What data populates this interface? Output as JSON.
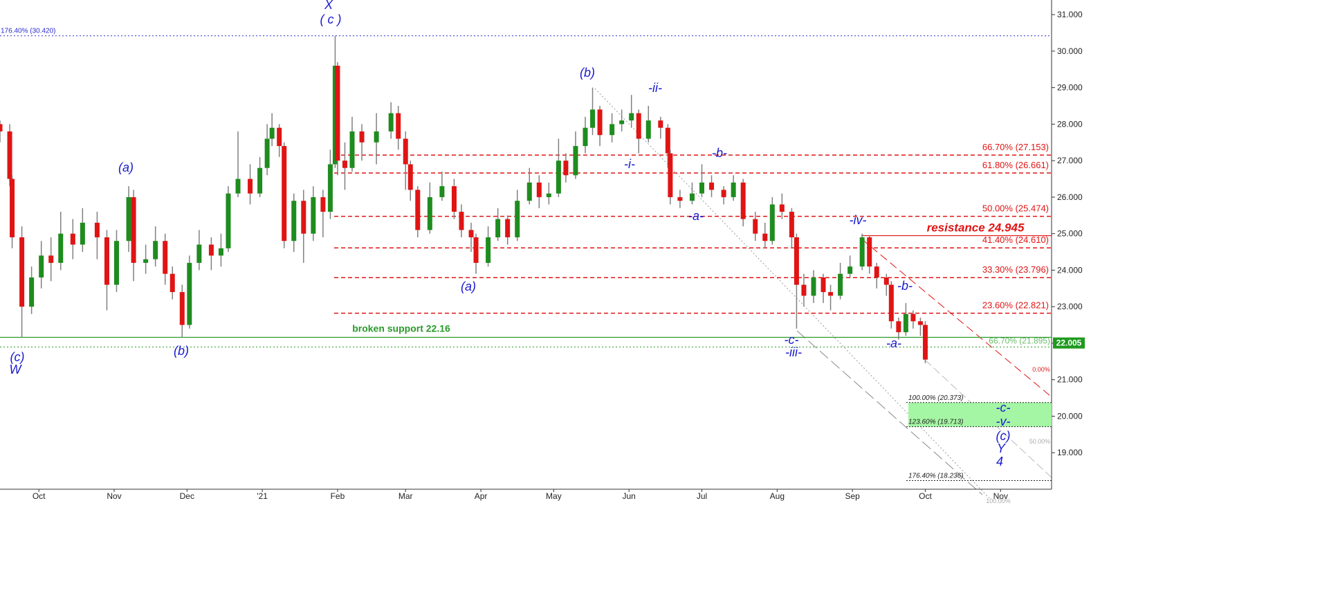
{
  "chart_data": {
    "type": "candlestick",
    "up_color": "#1e8c1e",
    "down_color": "#e01414",
    "wick_color": "#808080",
    "xlim": [
      14,
      447
    ],
    "ylim": [
      18,
      31.4
    ],
    "xticks": [
      {
        "value": 30,
        "label": "Oct"
      },
      {
        "value": 61,
        "label": "Nov"
      },
      {
        "value": 91,
        "label": "Dec"
      },
      {
        "value": 122,
        "label": "'21"
      },
      {
        "value": 153,
        "label": "Feb"
      },
      {
        "value": 181,
        "label": "Mar"
      },
      {
        "value": 212,
        "label": "Apr"
      },
      {
        "value": 242,
        "label": "May"
      },
      {
        "value": 273,
        "label": "Jun"
      },
      {
        "value": 303,
        "label": "Jul"
      },
      {
        "value": 334,
        "label": "Aug"
      },
      {
        "value": 365,
        "label": "Sep"
      },
      {
        "value": 395,
        "label": "Oct"
      },
      {
        "value": 426,
        "label": "Nov"
      }
    ],
    "yticks": [
      {
        "value": 19,
        "label": "19.000"
      },
      {
        "value": 20,
        "label": "20.000"
      },
      {
        "value": 21,
        "label": "21.000"
      },
      {
        "value": 22,
        "label": "22.000"
      },
      {
        "value": 23,
        "label": "23.000"
      },
      {
        "value": 24,
        "label": "24.000"
      },
      {
        "value": 25,
        "label": "25.000"
      },
      {
        "value": 26,
        "label": "26.000"
      },
      {
        "value": 27,
        "label": "27.000"
      },
      {
        "value": 28,
        "label": "28.000"
      },
      {
        "value": 29,
        "label": "29.000"
      },
      {
        "value": 30,
        "label": "30.000"
      },
      {
        "value": 31,
        "label": "31.000"
      }
    ],
    "x": [
      14,
      18,
      19,
      23,
      27,
      31,
      35,
      39,
      44,
      48,
      54,
      58,
      62,
      67,
      69,
      74,
      78,
      82,
      85,
      89,
      92,
      96,
      101,
      105,
      108,
      112,
      117,
      121,
      124,
      126,
      129,
      131,
      135,
      139,
      143,
      147,
      150,
      152,
      153,
      156,
      159,
      163,
      169,
      175,
      178,
      181,
      183,
      186,
      191,
      196,
      201,
      204,
      208,
      210,
      215,
      219,
      223,
      227,
      232,
      236,
      240,
      244,
      247,
      251,
      255,
      258,
      261,
      266,
      270,
      274,
      277,
      281,
      286,
      289,
      290,
      294,
      299,
      303,
      307,
      312,
      316,
      320,
      325,
      329,
      332,
      336,
      340,
      342,
      345,
      349,
      353,
      356,
      360,
      364,
      369,
      372,
      375,
      379,
      381,
      384,
      387,
      390,
      393,
      395
    ],
    "open": [
      28.0,
      27.8,
      26.5,
      24.9,
      23.0,
      23.8,
      24.4,
      24.2,
      25.0,
      24.7,
      25.3,
      24.9,
      23.6,
      24.8,
      26.0,
      24.2,
      24.3,
      24.8,
      23.9,
      23.4,
      22.5,
      24.2,
      24.7,
      24.4,
      24.6,
      26.1,
      26.5,
      26.1,
      26.8,
      27.6,
      27.9,
      27.4,
      24.8,
      25.9,
      25.0,
      26.0,
      25.6,
      26.9,
      29.6,
      27.0,
      26.8,
      27.8,
      27.5,
      27.8,
      28.3,
      27.6,
      26.9,
      26.2,
      25.1,
      26.0,
      26.3,
      25.6,
      25.1,
      24.9,
      24.2,
      24.9,
      25.4,
      24.9,
      25.9,
      26.4,
      26.0,
      26.1,
      27.0,
      26.6,
      27.4,
      27.9,
      28.4,
      27.7,
      28.0,
      28.1,
      28.3,
      27.6,
      28.1,
      27.9,
      27.2,
      26.0,
      25.9,
      26.1,
      26.4,
      26.2,
      26.0,
      26.4,
      25.4,
      25.0,
      24.8,
      25.8,
      25.6,
      24.9,
      23.6,
      23.3,
      23.8,
      23.4,
      23.3,
      23.9,
      24.1,
      24.9,
      24.1,
      23.8,
      23.6,
      22.6,
      22.3,
      22.8,
      22.6,
      22.5
    ],
    "high": [
      28.1,
      28.0,
      26.6,
      25.2,
      24.1,
      24.8,
      24.9,
      25.6,
      25.4,
      25.7,
      25.6,
      25.1,
      25.1,
      26.3,
      26.2,
      24.7,
      25.2,
      25.0,
      24.1,
      23.6,
      24.4,
      25.1,
      24.9,
      25.0,
      26.3,
      27.8,
      26.9,
      27.1,
      28.0,
      28.3,
      28.0,
      27.5,
      26.1,
      26.2,
      26.3,
      26.2,
      27.3,
      30.42,
      29.7,
      27.5,
      28.2,
      28.0,
      28.3,
      28.6,
      28.5,
      27.8,
      27.0,
      26.3,
      26.4,
      26.7,
      26.5,
      25.8,
      25.3,
      25.0,
      25.2,
      25.7,
      25.5,
      26.2,
      26.8,
      26.6,
      26.4,
      27.6,
      27.2,
      27.8,
      28.2,
      29.0,
      28.5,
      28.3,
      28.4,
      28.8,
      28.4,
      28.5,
      28.2,
      28.0,
      27.3,
      26.2,
      26.4,
      26.9,
      26.6,
      26.3,
      26.6,
      26.5,
      25.6,
      25.3,
      26.0,
      26.1,
      25.7,
      25.0,
      23.9,
      24.0,
      23.9,
      23.6,
      24.2,
      24.4,
      25.0,
      24.95,
      24.2,
      23.9,
      23.7,
      22.7,
      23.1,
      22.9,
      22.7,
      22.6
    ],
    "low": [
      27.5,
      26.3,
      24.6,
      22.16,
      22.8,
      23.5,
      23.7,
      24.0,
      24.3,
      24.5,
      24.3,
      22.9,
      23.4,
      24.5,
      23.7,
      23.9,
      24.1,
      23.6,
      23.2,
      22.16,
      22.4,
      24.0,
      24.0,
      24.1,
      24.5,
      26.0,
      25.8,
      26.0,
      26.6,
      27.4,
      27.1,
      24.6,
      24.5,
      24.2,
      24.8,
      24.9,
      25.4,
      26.8,
      26.6,
      26.2,
      26.7,
      27.0,
      26.9,
      27.6,
      27.3,
      26.2,
      25.9,
      24.9,
      25.0,
      25.9,
      25.4,
      24.9,
      24.5,
      23.9,
      24.1,
      24.8,
      24.7,
      24.8,
      25.8,
      25.7,
      25.8,
      26.0,
      26.4,
      26.5,
      27.2,
      27.7,
      27.4,
      27.5,
      27.8,
      27.9,
      27.2,
      27.5,
      27.6,
      26.8,
      25.8,
      25.7,
      25.8,
      26.0,
      26.0,
      25.8,
      25.9,
      25.2,
      24.8,
      24.6,
      24.7,
      25.4,
      24.6,
      22.4,
      23.0,
      23.1,
      23.1,
      22.9,
      23.2,
      23.8,
      24.0,
      23.9,
      23.5,
      23.3,
      22.4,
      22.1,
      22.2,
      22.4,
      22.2,
      21.45
    ],
    "close": [
      27.8,
      26.5,
      24.9,
      23.0,
      23.8,
      24.4,
      24.2,
      25.0,
      24.7,
      25.3,
      24.9,
      23.6,
      24.8,
      26.0,
      24.2,
      24.3,
      24.8,
      23.9,
      23.4,
      22.5,
      24.2,
      24.7,
      24.4,
      24.6,
      26.1,
      26.5,
      26.1,
      26.8,
      27.6,
      27.9,
      27.4,
      24.8,
      25.9,
      25.0,
      26.0,
      25.6,
      26.9,
      29.6,
      27.0,
      26.8,
      27.8,
      27.5,
      27.8,
      28.3,
      27.6,
      26.9,
      26.2,
      25.1,
      26.0,
      26.3,
      25.6,
      25.1,
      24.9,
      24.2,
      24.9,
      25.4,
      24.9,
      25.9,
      26.4,
      26.0,
      26.1,
      27.0,
      26.6,
      27.4,
      27.9,
      28.4,
      27.7,
      28.0,
      28.1,
      28.3,
      27.6,
      28.1,
      27.9,
      27.2,
      26.0,
      25.9,
      26.1,
      26.4,
      26.2,
      26.0,
      26.4,
      25.4,
      25.0,
      24.8,
      25.8,
      25.6,
      24.9,
      23.6,
      23.3,
      23.8,
      23.4,
      23.3,
      23.9,
      24.1,
      24.9,
      24.1,
      23.8,
      23.6,
      22.6,
      22.3,
      22.8,
      22.6,
      22.5,
      21.55
    ],
    "last_price": 22.005,
    "last_price_color": "#1e9a1e",
    "fib_retracements": {
      "color": "#e01414",
      "levels": [
        {
          "label": "66.70% (27.153)",
          "value": 27.153
        },
        {
          "label": "61.80% (26.661)",
          "value": 26.661
        },
        {
          "label": "50.00% (25.474)",
          "value": 25.474
        },
        {
          "label": "41.40% (24.610)",
          "value": 24.61
        },
        {
          "label": "33.30% (23.796)",
          "value": 23.796
        },
        {
          "label": "23.60% (22.821)",
          "value": 22.821
        }
      ]
    },
    "fib_extensions": {
      "color": "#222222",
      "zone_color": "#a4f5a4",
      "levels": [
        {
          "label": "100.00% (20.373)",
          "value": 20.373
        },
        {
          "label": "123.60% (19.713)",
          "value": 19.713
        },
        {
          "label": "176.40% (18.236)",
          "value": 18.236
        }
      ]
    },
    "resistance": {
      "label": "resistance 24.945",
      "value": 24.945,
      "color": "#e01414"
    },
    "support": {
      "label": "broken support 22.16",
      "value": 22.16,
      "color": "#2a9a2a"
    },
    "lower_level": {
      "label": "66.70% (21.895)",
      "value": 21.895,
      "color": "#2a9a2a"
    },
    "upper_level": {
      "label": "176.40% (30.420)",
      "value": 30.42,
      "color": "#2a2ad0"
    },
    "channel_labels": [
      "0.00%",
      "50.00%",
      "100.00%"
    ],
    "wave_labels": [
      "X",
      "( c )",
      "(b)",
      "-ii-",
      "-i-",
      "-b-",
      "-a-",
      "(a)",
      "(a)",
      "(c)",
      "W",
      "(b)",
      "-iv-",
      "-b-",
      "-a-",
      "-c-",
      "-iii-",
      "-c-",
      "-v-",
      "(c)",
      "Y",
      "4"
    ]
  }
}
